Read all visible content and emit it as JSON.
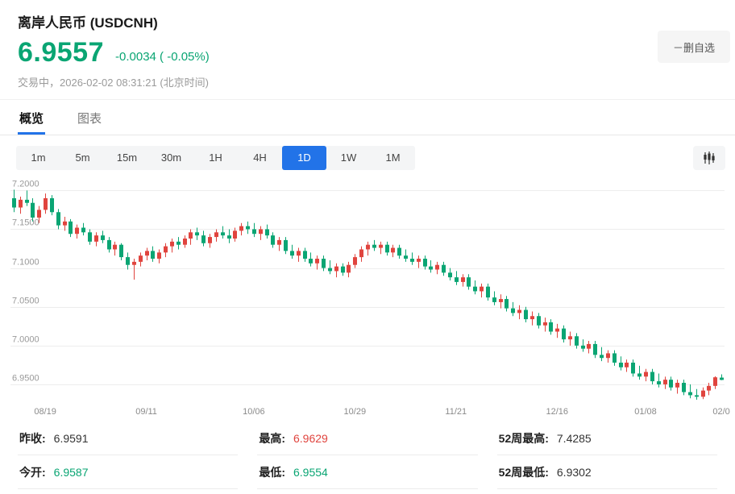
{
  "colors": {
    "green": "#0aa573",
    "red": "#e0443e",
    "blue": "#2273e8"
  },
  "header": {
    "title": "离岸人民币 (USDCNH)",
    "price": "6.9557",
    "change": "-0.0034 ( -0.05%)",
    "status": "交易中，2026-02-02 08:31:21 (北京时间)",
    "remove_watchlist_label": "－删自选"
  },
  "tabs": {
    "items": [
      {
        "label": "概览",
        "active": true
      },
      {
        "label": "图表",
        "active": false
      }
    ]
  },
  "timeframes": {
    "items": [
      "1m",
      "5m",
      "15m",
      "30m",
      "1H",
      "4H",
      "1D",
      "1W",
      "1M"
    ],
    "active": "1D"
  },
  "chart_data": {
    "type": "candlestick",
    "symbol": "USDCNH",
    "up_color": "#e0443e",
    "down_color": "#0aa573",
    "grid": true,
    "ylim": [
      6.925,
      7.218
    ],
    "y_ticks": [
      {
        "value": 7.2,
        "label": "7.2000"
      },
      {
        "value": 7.15,
        "label": "7.1500"
      },
      {
        "value": 7.1,
        "label": "7.1000"
      },
      {
        "value": 7.05,
        "label": "7.0500"
      },
      {
        "value": 7.0,
        "label": "7.0000"
      },
      {
        "value": 6.95,
        "label": "6.9500"
      }
    ],
    "x_labels": [
      {
        "index": 5,
        "text": "08/19"
      },
      {
        "index": 21,
        "text": "09/11"
      },
      {
        "index": 38,
        "text": "10/06"
      },
      {
        "index": 54,
        "text": "10/29"
      },
      {
        "index": 70,
        "text": "11/21"
      },
      {
        "index": 86,
        "text": "12/16"
      },
      {
        "index": 100,
        "text": "01/08"
      },
      {
        "index": 112,
        "text": "02/0"
      }
    ],
    "candle_format": [
      "open",
      "high",
      "low",
      "close"
    ],
    "candles": [
      [
        7.19,
        7.201,
        7.172,
        7.178
      ],
      [
        7.178,
        7.192,
        7.17,
        7.188
      ],
      [
        7.188,
        7.2,
        7.18,
        7.184
      ],
      [
        7.184,
        7.19,
        7.16,
        7.165
      ],
      [
        7.165,
        7.18,
        7.158,
        7.175
      ],
      [
        7.175,
        7.196,
        7.17,
        7.19
      ],
      [
        7.19,
        7.194,
        7.168,
        7.172
      ],
      [
        7.172,
        7.176,
        7.15,
        7.155
      ],
      [
        7.155,
        7.166,
        7.148,
        7.16
      ],
      [
        7.16,
        7.163,
        7.14,
        7.144
      ],
      [
        7.144,
        7.156,
        7.138,
        7.152
      ],
      [
        7.152,
        7.158,
        7.142,
        7.146
      ],
      [
        7.146,
        7.15,
        7.13,
        7.134
      ],
      [
        7.134,
        7.146,
        7.128,
        7.142
      ],
      [
        7.142,
        7.148,
        7.132,
        7.136
      ],
      [
        7.136,
        7.14,
        7.12,
        7.124
      ],
      [
        7.124,
        7.134,
        7.116,
        7.13
      ],
      [
        7.13,
        7.132,
        7.11,
        7.114
      ],
      [
        7.114,
        7.12,
        7.098,
        7.104
      ],
      [
        7.104,
        7.112,
        7.085,
        7.108
      ],
      [
        7.108,
        7.12,
        7.102,
        7.116
      ],
      [
        7.116,
        7.126,
        7.11,
        7.122
      ],
      [
        7.122,
        7.128,
        7.108,
        7.112
      ],
      [
        7.112,
        7.124,
        7.106,
        7.12
      ],
      [
        7.12,
        7.132,
        7.114,
        7.128
      ],
      [
        7.128,
        7.138,
        7.12,
        7.134
      ],
      [
        7.134,
        7.14,
        7.124,
        7.13
      ],
      [
        7.13,
        7.142,
        7.126,
        7.138
      ],
      [
        7.138,
        7.15,
        7.13,
        7.146
      ],
      [
        7.146,
        7.152,
        7.136,
        7.142
      ],
      [
        7.142,
        7.148,
        7.128,
        7.132
      ],
      [
        7.132,
        7.144,
        7.126,
        7.14
      ],
      [
        7.14,
        7.15,
        7.134,
        7.146
      ],
      [
        7.146,
        7.154,
        7.138,
        7.142
      ],
      [
        7.142,
        7.15,
        7.132,
        7.138
      ],
      [
        7.138,
        7.152,
        7.134,
        7.148
      ],
      [
        7.148,
        7.158,
        7.142,
        7.154
      ],
      [
        7.154,
        7.16,
        7.144,
        7.15
      ],
      [
        7.15,
        7.158,
        7.14,
        7.144
      ],
      [
        7.144,
        7.154,
        7.136,
        7.15
      ],
      [
        7.15,
        7.156,
        7.138,
        7.142
      ],
      [
        7.142,
        7.146,
        7.126,
        7.13
      ],
      [
        7.13,
        7.14,
        7.122,
        7.136
      ],
      [
        7.136,
        7.14,
        7.118,
        7.122
      ],
      [
        7.122,
        7.13,
        7.112,
        7.116
      ],
      [
        7.116,
        7.126,
        7.108,
        7.122
      ],
      [
        7.122,
        7.126,
        7.108,
        7.112
      ],
      [
        7.112,
        7.12,
        7.102,
        7.106
      ],
      [
        7.106,
        7.116,
        7.098,
        7.112
      ],
      [
        7.112,
        7.116,
        7.096,
        7.1
      ],
      [
        7.1,
        7.11,
        7.092,
        7.096
      ],
      [
        7.096,
        7.106,
        7.088,
        7.102
      ],
      [
        7.102,
        7.106,
        7.09,
        7.094
      ],
      [
        7.094,
        7.108,
        7.088,
        7.104
      ],
      [
        7.104,
        7.118,
        7.1,
        7.114
      ],
      [
        7.114,
        7.128,
        7.108,
        7.124
      ],
      [
        7.124,
        7.134,
        7.116,
        7.13
      ],
      [
        7.13,
        7.136,
        7.122,
        7.126
      ],
      [
        7.126,
        7.134,
        7.118,
        7.13
      ],
      [
        7.13,
        7.134,
        7.116,
        7.12
      ],
      [
        7.12,
        7.13,
        7.114,
        7.126
      ],
      [
        7.126,
        7.13,
        7.112,
        7.116
      ],
      [
        7.116,
        7.124,
        7.108,
        7.112
      ],
      [
        7.112,
        7.12,
        7.104,
        7.108
      ],
      [
        7.108,
        7.116,
        7.1,
        7.112
      ],
      [
        7.112,
        7.116,
        7.098,
        7.102
      ],
      [
        7.102,
        7.11,
        7.094,
        7.098
      ],
      [
        7.098,
        7.108,
        7.092,
        7.104
      ],
      [
        7.104,
        7.108,
        7.09,
        7.094
      ],
      [
        7.094,
        7.1,
        7.084,
        7.088
      ],
      [
        7.088,
        7.096,
        7.078,
        7.082
      ],
      [
        7.082,
        7.092,
        7.076,
        7.088
      ],
      [
        7.088,
        7.092,
        7.072,
        7.076
      ],
      [
        7.076,
        7.084,
        7.066,
        7.07
      ],
      [
        7.07,
        7.08,
        7.062,
        7.076
      ],
      [
        7.076,
        7.08,
        7.058,
        7.062
      ],
      [
        7.062,
        7.07,
        7.052,
        7.056
      ],
      [
        7.056,
        7.066,
        7.048,
        7.06
      ],
      [
        7.06,
        7.064,
        7.044,
        7.048
      ],
      [
        7.048,
        7.056,
        7.038,
        7.042
      ],
      [
        7.042,
        7.052,
        7.034,
        7.046
      ],
      [
        7.046,
        7.05,
        7.03,
        7.034
      ],
      [
        7.034,
        7.044,
        7.026,
        7.038
      ],
      [
        7.038,
        7.042,
        7.022,
        7.026
      ],
      [
        7.026,
        7.036,
        7.018,
        7.03
      ],
      [
        7.03,
        7.034,
        7.014,
        7.018
      ],
      [
        7.018,
        7.028,
        7.01,
        7.022
      ],
      [
        7.022,
        7.026,
        7.004,
        7.008
      ],
      [
        7.008,
        7.018,
        7.0,
        7.012
      ],
      [
        7.012,
        7.016,
        6.996,
        7.0
      ],
      [
        7.0,
        7.008,
        6.992,
        6.996
      ],
      [
        6.996,
        7.006,
        6.99,
        7.002
      ],
      [
        7.002,
        7.006,
        6.984,
        6.988
      ],
      [
        6.988,
        6.998,
        6.98,
        6.984
      ],
      [
        6.984,
        6.994,
        6.978,
        6.99
      ],
      [
        6.99,
        6.994,
        6.974,
        6.978
      ],
      [
        6.978,
        6.986,
        6.968,
        6.972
      ],
      [
        6.972,
        6.982,
        6.966,
        6.978
      ],
      [
        6.978,
        6.982,
        6.96,
        6.964
      ],
      [
        6.964,
        6.974,
        6.956,
        6.96
      ],
      [
        6.96,
        6.97,
        6.954,
        6.966
      ],
      [
        6.966,
        6.97,
        6.95,
        6.954
      ],
      [
        6.954,
        6.964,
        6.946,
        6.95
      ],
      [
        6.95,
        6.96,
        6.944,
        6.956
      ],
      [
        6.956,
        6.96,
        6.942,
        6.946
      ],
      [
        6.946,
        6.956,
        6.938,
        6.952
      ],
      [
        6.952,
        6.956,
        6.936,
        6.94
      ],
      [
        6.94,
        6.95,
        6.932,
        6.936
      ],
      [
        6.936,
        6.944,
        6.9302,
        6.934
      ],
      [
        6.934,
        6.946,
        6.931,
        6.942
      ],
      [
        6.942,
        6.952,
        6.936,
        6.948
      ],
      [
        6.948,
        6.9605,
        6.944,
        6.9591
      ],
      [
        6.9587,
        6.9629,
        6.9554,
        6.9557
      ]
    ]
  },
  "stats": {
    "columns": [
      {
        "cells": [
          {
            "label": "昨收:",
            "value": "6.9591",
            "color": "#333333"
          },
          {
            "label": "今开:",
            "value": "6.9587",
            "color": "#0aa573"
          }
        ]
      },
      {
        "cells": [
          {
            "label": "最高:",
            "value": "6.9629",
            "color": "#e0443e"
          },
          {
            "label": "最低:",
            "value": "6.9554",
            "color": "#0aa573"
          }
        ]
      },
      {
        "cells": [
          {
            "label": "52周最高:",
            "value": "7.4285",
            "color": "#333333"
          },
          {
            "label": "52周最低:",
            "value": "6.9302",
            "color": "#333333"
          }
        ]
      }
    ]
  }
}
